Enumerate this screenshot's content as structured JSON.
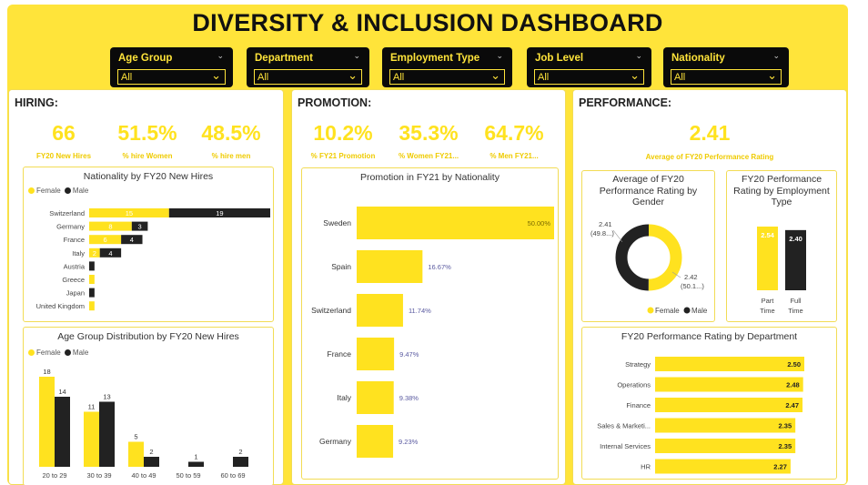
{
  "header": {
    "title": "DIVERSITY & INCLUSION DASHBOARD"
  },
  "slicers": [
    {
      "label": "Age Group",
      "value": "All"
    },
    {
      "label": "Department",
      "value": "All"
    },
    {
      "label": "Employment Type",
      "value": "All"
    },
    {
      "label": "Job Level",
      "value": "All"
    },
    {
      "label": "Nationality",
      "value": "All"
    }
  ],
  "colors": {
    "female": "#FFE21F",
    "male": "#222222",
    "kpi": "#FFE21F"
  },
  "hiring": {
    "title": "HIRING:",
    "kpis": [
      {
        "value": "66",
        "label": "FY20 New Hires"
      },
      {
        "value": "51.5%",
        "label": "% hire Women"
      },
      {
        "value": "48.5%",
        "label": "% hire men"
      }
    ]
  },
  "promotion": {
    "title": "PROMOTION:",
    "kpis": [
      {
        "value": "10.2%",
        "label": "% FY21 Promotion"
      },
      {
        "value": "35.3%",
        "label": "% Women FY21..."
      },
      {
        "value": "64.7%",
        "label": "% Men FY21..."
      }
    ]
  },
  "performance": {
    "title": "PERFORMANCE:",
    "kpi": {
      "value": "2.41",
      "label": "Average of FY20 Performance Rating"
    }
  },
  "chart_data": [
    {
      "id": "nationality_hires",
      "type": "bar",
      "orientation": "horizontal",
      "stacked": true,
      "title": "Nationality by FY20 New Hires",
      "legend": [
        "Female",
        "Male"
      ],
      "legend_position": "top-left",
      "categories": [
        "Switzerland",
        "Germany",
        "France",
        "Italy",
        "Austria",
        "Greece",
        "Japan",
        "United Kingdom"
      ],
      "series": [
        {
          "name": "Female",
          "values": [
            15,
            8,
            6,
            2,
            0,
            1,
            0,
            1
          ]
        },
        {
          "name": "Male",
          "values": [
            19,
            3,
            4,
            4,
            1,
            0,
            1,
            0
          ]
        }
      ]
    },
    {
      "id": "age_group_hires",
      "type": "bar",
      "orientation": "vertical",
      "stacked": false,
      "title": "Age Group Distribution by FY20 New Hires",
      "legend": [
        "Female",
        "Male"
      ],
      "legend_position": "top-left",
      "categories": [
        "20 to 29",
        "30 to 39",
        "40 to 49",
        "50 to 59",
        "60 to 69"
      ],
      "series": [
        {
          "name": "Female",
          "values": [
            18,
            11,
            5,
            null,
            null
          ]
        },
        {
          "name": "Male",
          "values": [
            14,
            13,
            2,
            1,
            2
          ]
        }
      ]
    },
    {
      "id": "promotion_nationality",
      "type": "bar",
      "orientation": "horizontal",
      "title": "Promotion in FY21 by Nationality",
      "categories": [
        "Sweden",
        "Spain",
        "Switzerland",
        "France",
        "Italy",
        "Germany"
      ],
      "values": [
        50.0,
        16.67,
        11.74,
        9.47,
        9.38,
        9.23
      ],
      "labels": [
        "50.00%",
        "16.67%",
        "11.74%",
        "9.47%",
        "9.38%",
        "9.23%"
      ]
    },
    {
      "id": "rating_gender",
      "type": "pie",
      "donut": true,
      "title": "Average of FY20 Performance Rating by Gender",
      "legend": [
        "Female",
        "Male"
      ],
      "legend_position": "bottom",
      "slices": [
        {
          "name": "Female",
          "value": 2.42,
          "label_value": "2.42",
          "label_pct": "(50.1...)"
        },
        {
          "name": "Male",
          "value": 2.41,
          "label_value": "2.41",
          "label_pct": "(49.8...)"
        }
      ]
    },
    {
      "id": "rating_employment",
      "type": "bar",
      "orientation": "vertical",
      "title": "FY20 Performance Rating by Employment Type",
      "categories": [
        "Part Time",
        "Full Time"
      ],
      "category_lines": [
        [
          "Part",
          "Time"
        ],
        [
          "Full",
          "Time"
        ]
      ],
      "values": [
        2.54,
        2.4
      ],
      "labels": [
        "2.54",
        "2.40"
      ]
    },
    {
      "id": "rating_department",
      "type": "bar",
      "orientation": "horizontal",
      "title": "FY20 Performance Rating by Department",
      "categories": [
        "Strategy",
        "Operations",
        "Finance",
        "Sales & Marketi...",
        "Internal Services",
        "HR"
      ],
      "values": [
        2.5,
        2.48,
        2.47,
        2.35,
        2.35,
        2.27
      ],
      "labels": [
        "2.50",
        "2.48",
        "2.47",
        "2.35",
        "2.35",
        "2.27"
      ]
    }
  ]
}
